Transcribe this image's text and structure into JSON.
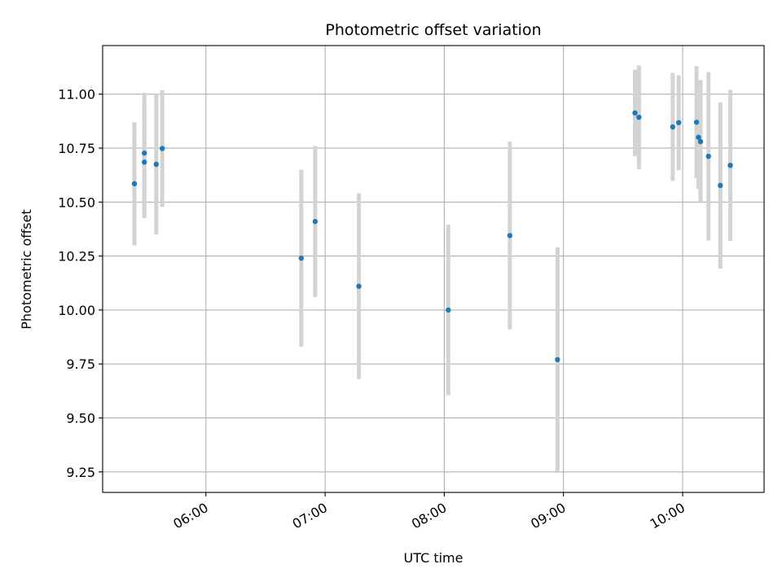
{
  "chart_data": {
    "type": "scatter",
    "title": "Photometric offset variation",
    "xlabel": "UTC time",
    "ylabel": "Photometric offset",
    "x_ticks": [
      "06:00",
      "07:00",
      "08:00",
      "09:00",
      "10:00"
    ],
    "y_ticks": [
      "9.25",
      "9.50",
      "9.75",
      "10.00",
      "10.25",
      "10.50",
      "10.75",
      "11.00"
    ],
    "x_range": [
      "05:08",
      "10:41"
    ],
    "ylim": [
      9.155,
      11.225
    ],
    "grid": true,
    "marker_color": "#1f77b4",
    "errorbar_color": "#d3d3d3",
    "points": [
      {
        "time": "05:24",
        "y": 10.585,
        "err": 0.285
      },
      {
        "time": "05:29",
        "y": 10.685,
        "err": 0.26
      },
      {
        "time": "05:29",
        "y": 10.727,
        "err": 0.28
      },
      {
        "time": "05:35",
        "y": 10.675,
        "err": 0.325
      },
      {
        "time": "05:38",
        "y": 10.748,
        "err": 0.27
      },
      {
        "time": "06:48",
        "y": 10.24,
        "err": 0.41
      },
      {
        "time": "06:55",
        "y": 10.41,
        "err": 0.35
      },
      {
        "time": "07:17",
        "y": 10.11,
        "err": 0.43
      },
      {
        "time": "08:02",
        "y": 10.0,
        "err": 0.395
      },
      {
        "time": "08:33",
        "y": 10.345,
        "err": 0.435
      },
      {
        "time": "08:57",
        "y": 9.77,
        "err": 0.52
      },
      {
        "time": "09:36",
        "y": 10.913,
        "err": 0.2
      },
      {
        "time": "09:38",
        "y": 10.893,
        "err": 0.24
      },
      {
        "time": "09:55",
        "y": 10.848,
        "err": 0.25
      },
      {
        "time": "09:58",
        "y": 10.868,
        "err": 0.22
      },
      {
        "time": "10:07",
        "y": 10.87,
        "err": 0.26
      },
      {
        "time": "10:08",
        "y": 10.8,
        "err": 0.24
      },
      {
        "time": "10:09",
        "y": 10.78,
        "err": 0.285
      },
      {
        "time": "10:13",
        "y": 10.712,
        "err": 0.39
      },
      {
        "time": "10:19",
        "y": 10.577,
        "err": 0.385
      },
      {
        "time": "10:24",
        "y": 10.67,
        "err": 0.35
      }
    ]
  }
}
